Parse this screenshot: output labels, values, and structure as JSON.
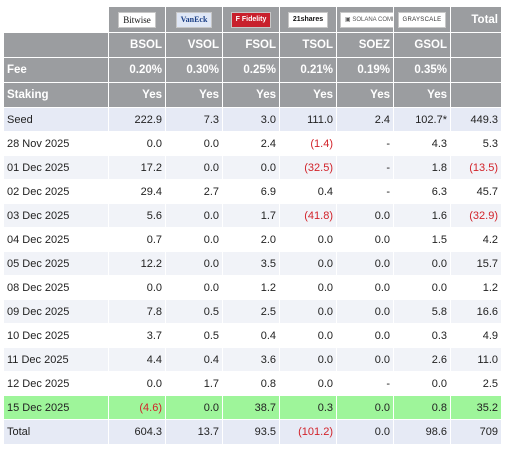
{
  "header": {
    "logos": [
      {
        "name": "bitwise",
        "text": "Bitwise"
      },
      {
        "name": "vaneck",
        "text": "VanEck"
      },
      {
        "name": "fidelity",
        "text": "F Fidelity"
      },
      {
        "name": "21shares",
        "text": "21shares"
      },
      {
        "name": "solana-company",
        "text": "▣ SOLANA COMPANY"
      },
      {
        "name": "grayscale",
        "text": "GRAYSCALE"
      }
    ],
    "total_label": "Total",
    "tickers": [
      "BSOL",
      "VSOL",
      "FSOL",
      "TSOL",
      "SOEZ",
      "GSOL"
    ]
  },
  "fee": {
    "label": "Fee",
    "values": [
      "0.20%",
      "0.30%",
      "0.25%",
      "0.21%",
      "0.19%",
      "0.35%"
    ]
  },
  "staking": {
    "label": "Staking",
    "values": [
      "Yes",
      "Yes",
      "Yes",
      "Yes",
      "Yes",
      "Yes"
    ]
  },
  "rows": [
    {
      "date": "Seed",
      "values": [
        "222.9",
        "7.3",
        "3.0",
        "111.0",
        "2.4",
        "102.7*",
        "449.3"
      ]
    },
    {
      "date": "28 Nov 2025",
      "values": [
        "0.0",
        "0.0",
        "2.4",
        "(1.4)",
        "-",
        "4.3",
        "5.3"
      ]
    },
    {
      "date": "01 Dec 2025",
      "values": [
        "17.2",
        "0.0",
        "0.0",
        "(32.5)",
        "-",
        "1.8",
        "(13.5)"
      ]
    },
    {
      "date": "02 Dec 2025",
      "values": [
        "29.4",
        "2.7",
        "6.9",
        "0.4",
        "-",
        "6.3",
        "45.7"
      ]
    },
    {
      "date": "03 Dec 2025",
      "values": [
        "5.6",
        "0.0",
        "1.7",
        "(41.8)",
        "0.0",
        "1.6",
        "(32.9)"
      ]
    },
    {
      "date": "04 Dec 2025",
      "values": [
        "0.7",
        "0.0",
        "2.0",
        "0.0",
        "0.0",
        "1.5",
        "4.2"
      ]
    },
    {
      "date": "05 Dec 2025",
      "values": [
        "12.2",
        "0.0",
        "3.5",
        "0.0",
        "0.0",
        "0.0",
        "15.7"
      ]
    },
    {
      "date": "08 Dec 2025",
      "values": [
        "0.0",
        "0.0",
        "1.2",
        "0.0",
        "0.0",
        "0.0",
        "1.2"
      ]
    },
    {
      "date": "09 Dec 2025",
      "values": [
        "7.8",
        "0.5",
        "2.5",
        "0.0",
        "0.0",
        "5.8",
        "16.6"
      ]
    },
    {
      "date": "10 Dec 2025",
      "values": [
        "3.7",
        "0.5",
        "0.4",
        "0.0",
        "0.0",
        "0.3",
        "4.9"
      ]
    },
    {
      "date": "11 Dec 2025",
      "values": [
        "4.4",
        "0.4",
        "3.6",
        "0.0",
        "0.0",
        "2.6",
        "11.0"
      ]
    },
    {
      "date": "12 Dec 2025",
      "values": [
        "0.0",
        "1.7",
        "0.8",
        "0.0",
        "-",
        "0.0",
        "2.5"
      ]
    },
    {
      "date": "15 Dec 2025",
      "values": [
        "(4.6)",
        "0.0",
        "38.7",
        "0.3",
        "0.0",
        "0.8",
        "35.2"
      ]
    }
  ],
  "total": {
    "label": "Total",
    "values": [
      "604.3",
      "13.7",
      "93.5",
      "(101.2)",
      "0.0",
      "98.6",
      "709"
    ]
  },
  "colors": {
    "header_bg": "#9b9da0",
    "negative": "#d2232a",
    "highlight": "#9ef59a",
    "seed_bg": "#e6eaf5",
    "alt_bg": "#f1f3f8"
  }
}
